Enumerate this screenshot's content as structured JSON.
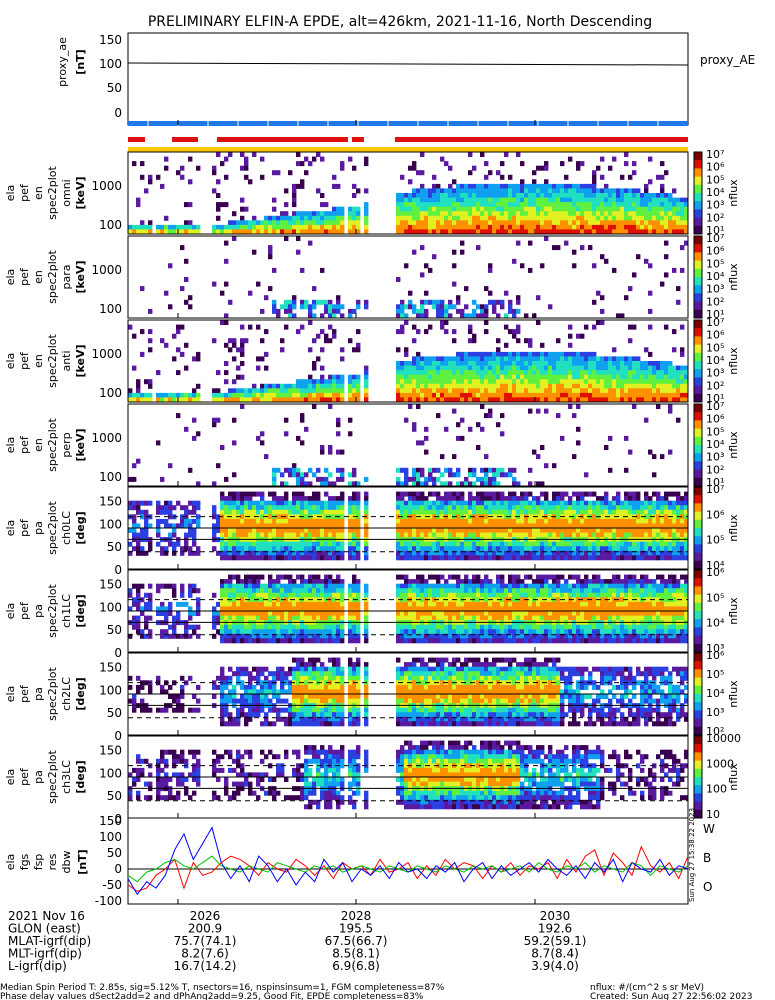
{
  "title": "PRELIMINARY ELFIN-A EPDE, alt=426km, 2021-11-16, North Descending",
  "colors": {
    "axis": "#000000",
    "bar_blue": "#1e78e6",
    "bar_red": "#e01010",
    "bar_yellow": "#ffc800",
    "mag_w": "#ff0000",
    "mag_b": "#00c000",
    "mag_o": "#0000ff"
  },
  "colorscale": [
    "#ffffff",
    "#3a0050",
    "#5a1aa0",
    "#2a40e0",
    "#10a0f0",
    "#20e0c0",
    "#60f040",
    "#e0f020",
    "#ff9000",
    "#e01000",
    "#800000"
  ],
  "proxy_ae": {
    "ylabel": [
      "proxy_ae",
      "[nT]"
    ],
    "yticks": [
      "150",
      "100",
      "50",
      "0"
    ],
    "legend": "proxy_AE",
    "ylim": [
      -10,
      160
    ],
    "series": {
      "x": [
        0,
        1
      ],
      "y": [
        100,
        95
      ]
    }
  },
  "ticks_x": {
    "labels": [
      "2026",
      "2028",
      "2030"
    ]
  },
  "panels": [
    {
      "id": "spec-omni",
      "lines": [
        "ela",
        "pef",
        "en",
        "spec2plot",
        "omni",
        "[keV]"
      ],
      "yticks": [
        "1000",
        "100"
      ],
      "cbar": [
        "10⁷",
        "10⁶",
        "10⁵",
        "10⁴",
        "10³",
        "10²",
        "10¹"
      ],
      "cbar_label": "nflux",
      "kind": "energy",
      "ref_lines": []
    },
    {
      "id": "spec-para",
      "lines": [
        "ela",
        "pef",
        "en",
        "spec2plot",
        "para",
        "[keV]"
      ],
      "yticks": [
        "1000",
        "100"
      ],
      "cbar": [
        "10⁷",
        "10⁶",
        "10⁵",
        "10⁴",
        "10³",
        "10²",
        "10¹"
      ],
      "cbar_label": "nflux",
      "kind": "energy-sparse",
      "ref_lines": []
    },
    {
      "id": "spec-anti",
      "lines": [
        "ela",
        "pef",
        "en",
        "spec2plot",
        "anti",
        "[keV]"
      ],
      "yticks": [
        "1000",
        "100"
      ],
      "cbar": [
        "10⁷",
        "10⁶",
        "10⁵",
        "10⁴",
        "10³",
        "10²",
        "10¹"
      ],
      "cbar_label": "nflux",
      "kind": "energy",
      "ref_lines": []
    },
    {
      "id": "spec-perp",
      "lines": [
        "ela",
        "pef",
        "en",
        "spec2plot",
        "perp",
        "[keV]"
      ],
      "yticks": [
        "1000",
        "100"
      ],
      "cbar": [
        "10⁷",
        "10⁶",
        "10⁵",
        "10⁴",
        "10³",
        "10²",
        "10¹"
      ],
      "cbar_label": "nflux",
      "kind": "energy-sparse",
      "ref_lines": []
    },
    {
      "id": "pa-ch0",
      "lines": [
        "ela",
        "pef",
        "pa",
        "spec2plot",
        "ch0LC",
        "[deg]"
      ],
      "yticks": [
        "150",
        "100",
        "50",
        "0"
      ],
      "cbar": [
        "10⁷",
        "10⁶",
        "10⁵",
        "10⁴"
      ],
      "cbar_label": "nflux",
      "kind": "pa",
      "ref_lines": [
        115,
        90,
        65
      ]
    },
    {
      "id": "pa-ch1",
      "lines": [
        "ela",
        "pef",
        "pa",
        "spec2plot",
        "ch1LC",
        "[deg]"
      ],
      "yticks": [
        "150",
        "100",
        "50",
        "0"
      ],
      "cbar": [
        "10⁶",
        "10⁵",
        "10⁴",
        "10³"
      ],
      "cbar_label": "nflux",
      "kind": "pa",
      "ref_lines": [
        115,
        90,
        65
      ]
    },
    {
      "id": "pa-ch2",
      "lines": [
        "ela",
        "pef",
        "pa",
        "spec2plot",
        "ch2LC",
        "[deg]"
      ],
      "yticks": [
        "150",
        "100",
        "50",
        "0"
      ],
      "cbar": [
        "10⁶",
        "10⁵",
        "10⁴",
        "10³",
        "10²"
      ],
      "cbar_label": "nflux",
      "kind": "pa-mid",
      "ref_lines": [
        115,
        90,
        65
      ]
    },
    {
      "id": "pa-ch3",
      "lines": [
        "ela",
        "pef",
        "pa",
        "spec2plot",
        "ch3LC",
        "[deg]"
      ],
      "yticks": [
        "150",
        "100",
        "50",
        "0"
      ],
      "cbar": [
        "10000",
        "1000",
        "100",
        "10"
      ],
      "cbar_label": "nflux",
      "kind": "pa-low",
      "ref_lines": [
        115,
        90,
        65
      ]
    }
  ],
  "mag": {
    "ylabel": [
      "ela",
      "fgs",
      "fsp",
      "res",
      "dbw",
      "[nT]"
    ],
    "yticks": [
      "150",
      "100",
      "50",
      "0",
      "-50",
      "-100"
    ],
    "ylim": [
      -110,
      160
    ],
    "legend": [
      "W",
      "B",
      "O"
    ],
    "stamp": "Sun Aug 27 15:38:22 2023",
    "series": [
      {
        "name": "W",
        "values": [
          -50,
          -70,
          -60,
          -20,
          0,
          30,
          -60,
          20,
          -20,
          -10,
          20,
          40,
          30,
          10,
          -20,
          20,
          0,
          -10,
          30,
          10,
          -20,
          10,
          -30,
          20,
          0,
          10,
          -20,
          30,
          -10,
          0,
          20,
          -30,
          10,
          -20,
          30,
          0,
          20,
          10,
          -30,
          10,
          -10,
          20,
          -20,
          10,
          0,
          20,
          -30,
          30,
          -10,
          40,
          60,
          -20,
          50,
          20,
          -20,
          70,
          10,
          -10,
          20,
          -30,
          40
        ]
      },
      {
        "name": "B",
        "values": [
          -20,
          -40,
          -10,
          0,
          20,
          30,
          10,
          0,
          20,
          40,
          10,
          0,
          -10,
          10,
          0,
          -10,
          20,
          10,
          0,
          -10,
          10,
          0,
          10,
          -10,
          0,
          10,
          0,
          -10,
          10,
          0,
          -10,
          10,
          0,
          -10,
          10,
          0,
          -10,
          10,
          0,
          10,
          -10,
          0,
          10,
          -10,
          20,
          0,
          -10,
          10,
          0,
          20,
          -10,
          10,
          0,
          -10,
          20,
          10,
          -20,
          10,
          0,
          -10,
          10
        ]
      },
      {
        "name": "O",
        "values": [
          -30,
          -80,
          -40,
          -60,
          -20,
          60,
          110,
          30,
          80,
          130,
          20,
          -30,
          10,
          -40,
          40,
          10,
          -40,
          0,
          -50,
          -10,
          -40,
          30,
          -10,
          20,
          -40,
          0,
          -20,
          10,
          -30,
          20,
          -10,
          0,
          -30,
          10,
          -10,
          20,
          -40,
          0,
          20,
          -30,
          10,
          -20,
          0,
          20,
          -10,
          30,
          0,
          -20,
          10,
          -30,
          20,
          -10,
          30,
          -40,
          20,
          0,
          -10,
          30,
          -20,
          10,
          0
        ]
      }
    ]
  },
  "footer": {
    "rows": [
      {
        "label": "2021 Nov 16",
        "values": [
          "2026",
          "2028",
          "2030"
        ]
      },
      {
        "label": "GLON (east)",
        "values": [
          "200.9",
          "195.5",
          "192.6"
        ]
      },
      {
        "label": "MLAT-igrf(dip)",
        "values": [
          "75.7(74.1)",
          "67.5(66.7)",
          "59.2(59.1)"
        ]
      },
      {
        "label": "MLT-igrf(dip)",
        "values": [
          "8.2(7.6)",
          "8.5(8.1)",
          "8.7(8.4)"
        ]
      },
      {
        "label": "L-igrf(dip)",
        "values": [
          "16.7(14.2)",
          "6.9(6.8)",
          "3.9(4.0)"
        ]
      }
    ],
    "note1": "Median Spin Period T: 2.85s, sig=5.12% T, nsectors=16, nspinsinsum=1, FGM completeness=87%",
    "note2": "Phase delay values dSect2add=2 and dPhAng2add=9.25, Good Fit, EPDE completeness=83%",
    "units": "nflux: #/(cm^2 s sr MeV)",
    "created": "Created: Sun Aug 27 22:56:02 2023"
  }
}
